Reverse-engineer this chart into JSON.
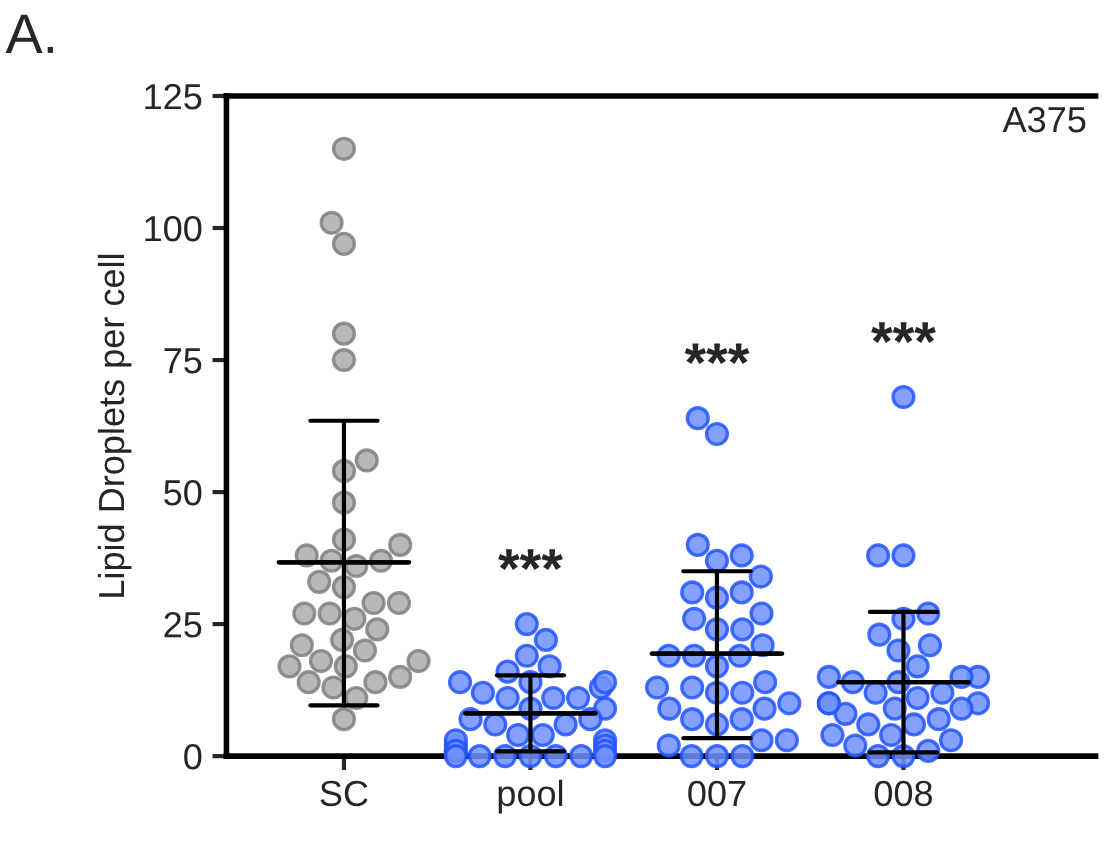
{
  "chart_data": {
    "type": "scatter",
    "ylabel": "Lipid Droplets per cell",
    "categories": [
      "SC",
      "pool",
      "007",
      "008"
    ],
    "ylim": [
      0,
      125
    ],
    "yticks": [
      0,
      25,
      50,
      75,
      100,
      125
    ],
    "grid": false,
    "legend": false,
    "annotations": [
      "A.",
      "A375",
      "***",
      "***",
      "***"
    ],
    "series": [
      {
        "color": "#7f7f7f",
        "marker": "circle",
        "x": [
          "SC",
          "SC",
          "SC",
          "SC",
          "SC",
          "SC",
          "SC",
          "SC",
          "SC",
          "SC",
          "SC",
          "SC",
          "SC",
          "SC",
          "SC",
          "SC",
          "SC",
          "SC",
          "SC",
          "SC",
          "SC",
          "SC",
          "SC",
          "SC",
          "SC",
          "SC",
          "SC",
          "SC",
          "SC",
          "SC",
          "SC",
          "SC",
          "SC",
          "SC",
          "SC"
        ],
        "values": [
          115,
          101,
          97,
          80,
          75,
          56,
          54,
          48,
          41,
          40,
          37,
          36,
          37,
          38,
          32,
          33,
          27,
          27,
          29,
          29,
          26,
          24,
          21,
          22,
          20,
          17,
          18,
          18,
          15,
          17,
          14,
          13,
          14,
          11,
          7
        ]
      },
      {
        "color": "#2255ff",
        "marker": "circle",
        "x": [
          "pool",
          "pool",
          "pool",
          "pool",
          "pool",
          "pool",
          "pool",
          "pool",
          "pool",
          "pool",
          "pool",
          "pool",
          "pool",
          "pool",
          "pool",
          "pool",
          "pool",
          "pool",
          "pool",
          "pool",
          "pool",
          "pool",
          "pool",
          "pool",
          "pool",
          "pool",
          "pool",
          "pool",
          "pool",
          "pool",
          "pool",
          "pool",
          "pool",
          "pool",
          "pool",
          "007",
          "007",
          "007",
          "007",
          "007",
          "007",
          "007",
          "007",
          "007",
          "007",
          "007",
          "007",
          "007",
          "007",
          "007",
          "007",
          "007",
          "007",
          "007",
          "007",
          "007",
          "007",
          "007",
          "007",
          "007",
          "007",
          "007",
          "007",
          "007",
          "007",
          "007",
          "007",
          "007",
          "007",
          "007",
          "008",
          "008",
          "008",
          "008",
          "008",
          "008",
          "008",
          "008",
          "008",
          "008",
          "008",
          "008",
          "008",
          "008",
          "008",
          "008",
          "008",
          "008",
          "008",
          "008",
          "008",
          "008",
          "008",
          "008",
          "008",
          "008",
          "008",
          "008",
          "008",
          "008",
          "008",
          "008",
          "008"
        ],
        "values": [
          25,
          22,
          19,
          16,
          17,
          13,
          11,
          11,
          12,
          9,
          7,
          6,
          4,
          3,
          0,
          0,
          2,
          2,
          1,
          0,
          0,
          1,
          0,
          14,
          14,
          14,
          11,
          9,
          7,
          6,
          4,
          3,
          1,
          0,
          0,
          64,
          61,
          40,
          38,
          37,
          34,
          31,
          31,
          30,
          27,
          26,
          24,
          24,
          21,
          19,
          19,
          19,
          17,
          14,
          12,
          13,
          13,
          12,
          9,
          9,
          10,
          7,
          6,
          7,
          2,
          3,
          3,
          0,
          0,
          0,
          68,
          38,
          38,
          27,
          26,
          23,
          21,
          20,
          17,
          15,
          14,
          15,
          14,
          15,
          12,
          11,
          10,
          10,
          9,
          8,
          9,
          7,
          6,
          4,
          3,
          4,
          2,
          1,
          0,
          0,
          10,
          6,
          12
        ]
      },
      {
        "type": "box",
        "color": "#000000",
        "boxes": [
          {
            "low": 9.6,
            "q1": 36.7,
            "median": 36.7,
            "q3": 36.7,
            "high": 63.5
          },
          {
            "low": 0.9,
            "q1": 8.1,
            "median": 8.1,
            "q3": 8.1,
            "high": 15.3
          },
          {
            "low": 3.4,
            "q1": 19.4,
            "median": 19.4,
            "q3": 19.4,
            "high": 35
          },
          {
            "low": 0.7,
            "q1": 14.0,
            "median": 14.0,
            "q3": 14.0,
            "high": 27.3
          }
        ]
      }
    ]
  }
}
